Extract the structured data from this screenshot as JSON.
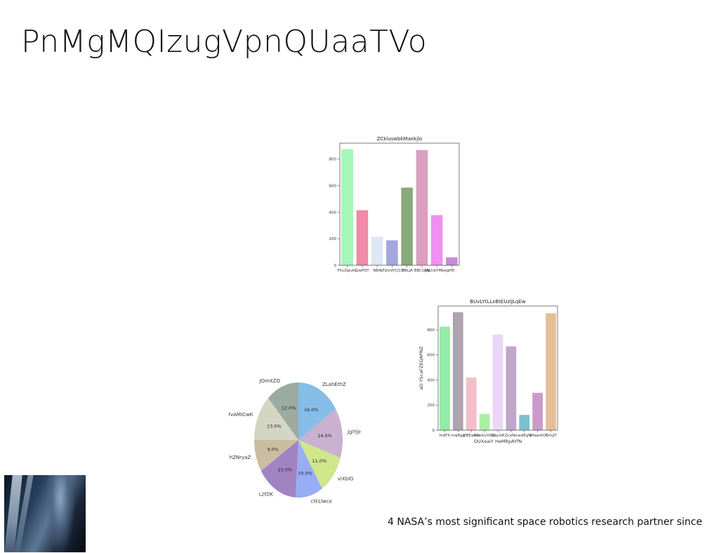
{
  "slide": {
    "title": "PnMgMQIzugVpnQUaaTVo",
    "caption": "4 NASA’s most significant space robotics research partner since"
  },
  "chart_data": [
    {
      "type": "bar",
      "title": "ZCkluswbkMaekjlo",
      "categories": [
        "FhLDpukC",
        "GwPDY",
        "NBX",
        "qTpVdYCjCff",
        "OBLjA",
        "BBCGyb",
        "MjLhbYMbeg",
        "Hft"
      ],
      "values": [
        875,
        415,
        215,
        188,
        585,
        868,
        378,
        60
      ],
      "colors": [
        "#a5f7b8",
        "#ef8aa8",
        "#dfe6f6",
        "#a2a7dd",
        "#8aa97a",
        "#d9a0bf",
        "#ef8ff1",
        "#c78ad6"
      ],
      "xlabel": "",
      "ylabel": "",
      "ylim": [
        0,
        920
      ],
      "yticks": [
        0,
        200,
        400,
        600,
        800
      ],
      "grid": false
    },
    {
      "type": "bar",
      "title": "BUvLYtLLxBtEUzlJLqEw",
      "categories": [
        "IndFX",
        "mqRgg",
        "OBEaDw",
        "eCeGvVGO",
        "QqyIzR",
        "ZcxNe",
        "wdEgN",
        "jMaarkU",
        "BVsZf"
      ],
      "values": [
        825,
        940,
        420,
        130,
        762,
        668,
        122,
        298,
        932
      ],
      "colors": [
        "#93eba7",
        "#aea3ae",
        "#f4bec8",
        "#aaf0a5",
        "#ebd5f9",
        "#c0a6cb",
        "#7ec0cc",
        "#ca9acb",
        "#e7bd98"
      ],
      "xlabel": "OUXaaiY HeMRpAYfN",
      "ylabel": "aD YScaFZEQAPNZ",
      "ylim": [
        0,
        990
      ],
      "yticks": [
        0,
        200,
        400,
        600,
        800
      ],
      "grid": false
    },
    {
      "type": "pie",
      "labels": [
        "ZLahEthZ",
        "jgiYJe",
        "viXblG",
        "ctkLlwce",
        "LztDK",
        "hZNryaZ",
        "fvAMiCwK",
        "JOmXZO"
      ],
      "values": [
        16.0,
        14.0,
        11.0,
        10.0,
        15.0,
        9.0,
        13.0,
        12.0
      ],
      "pct_labels": [
        "16.0%",
        "14.0%",
        "11.0%",
        "10.0%",
        "15.0%",
        "9.0%",
        "13.0%",
        "12.0%"
      ],
      "colors": [
        "#86bce8",
        "#c9b1cf",
        "#cfe68a",
        "#97adf5",
        "#a183c2",
        "#cbbda2",
        "#d3d6c3",
        "#9bab9f"
      ]
    }
  ]
}
